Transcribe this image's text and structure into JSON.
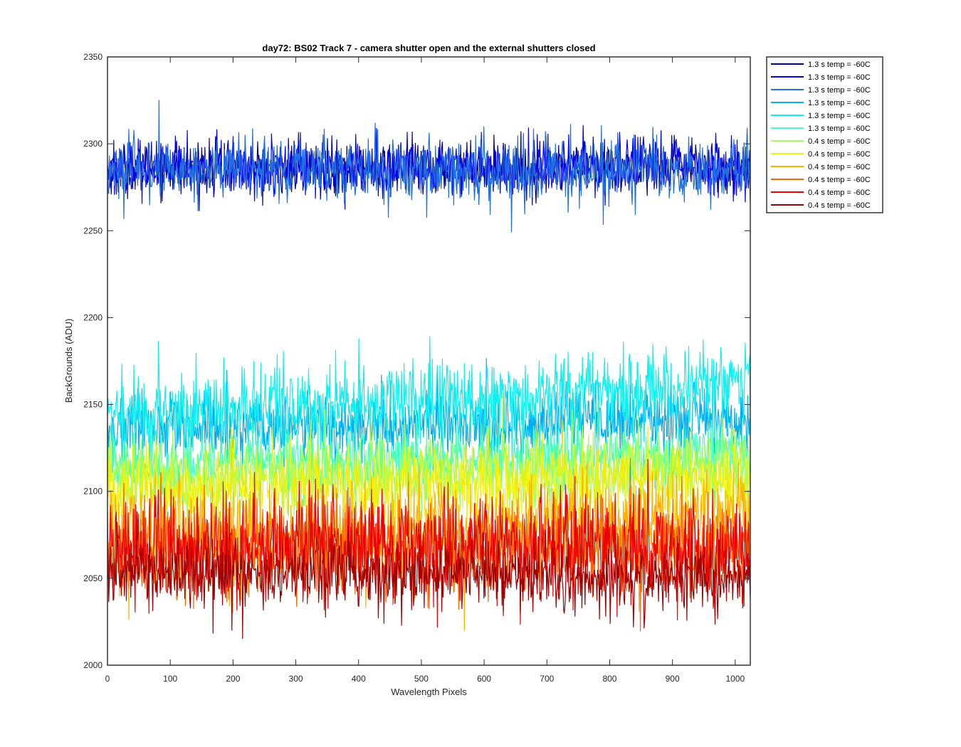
{
  "chart_data": {
    "type": "line",
    "title": "day72: BS02  Track 7 - camera shutter open and the external shutters closed",
    "xlabel": "Wavelength Pixels",
    "ylabel": "BackGrounds (ADU)",
    "xlim": [
      0,
      1024
    ],
    "ylim": [
      2000,
      2350
    ],
    "xticks": [
      0,
      100,
      200,
      300,
      400,
      500,
      600,
      700,
      800,
      900,
      1000
    ],
    "yticks": [
      2000,
      2050,
      2100,
      2150,
      2200,
      2250,
      2300,
      2350
    ],
    "grid": false,
    "legend_position": "outside-top-right",
    "n_points": 1024,
    "series": [
      {
        "name": "1.3 s temp = -60C",
        "color": "#00008f",
        "mean": 2286,
        "noise": 7,
        "drift": 0
      },
      {
        "name": "1.3 s temp = -60C",
        "color": "#0000ef",
        "mean": 2287,
        "noise": 8,
        "drift": 0
      },
      {
        "name": "1.3 s temp = -60C",
        "color": "#1f6fe0",
        "mean": 2285,
        "noise": 9,
        "drift": 0
      },
      {
        "name": "1.3 s temp = -60C",
        "color": "#00afef",
        "mean": 2135,
        "noise": 10,
        "drift": 6
      },
      {
        "name": "1.3 s temp = -60C",
        "color": "#10efef",
        "mean": 2144,
        "noise": 12,
        "drift": 18
      },
      {
        "name": "1.3 s temp = -60C",
        "color": "#40ffbf",
        "mean": 2115,
        "noise": 10,
        "drift": 8
      },
      {
        "name": "0.4 s temp = -60C",
        "color": "#9fff60",
        "mean": 2108,
        "noise": 11,
        "drift": 6
      },
      {
        "name": "0.4 s temp = -60C",
        "color": "#efef10",
        "mean": 2100,
        "noise": 12,
        "drift": 8
      },
      {
        "name": "0.4 s temp = -60C",
        "color": "#ffaf00",
        "mean": 2072,
        "noise": 14,
        "drift": 10
      },
      {
        "name": "0.4 s temp = -60C",
        "color": "#ff6000",
        "mean": 2067,
        "noise": 14,
        "drift": 0
      },
      {
        "name": "0.4 s temp = -60C",
        "color": "#ef0000",
        "mean": 2068,
        "noise": 15,
        "drift": 0
      },
      {
        "name": "0.4 s temp = -60C",
        "color": "#a00000",
        "mean": 2055,
        "noise": 10,
        "drift": -6
      }
    ]
  }
}
